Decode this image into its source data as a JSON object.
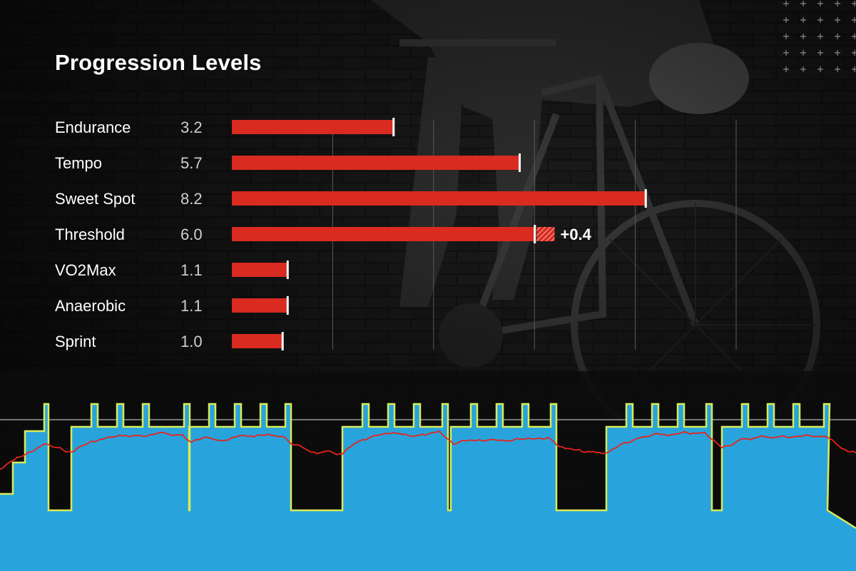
{
  "chart_data": [
    {
      "type": "bar",
      "orientation": "horizontal",
      "title": "Progression Levels",
      "categories": [
        "Endurance",
        "Tempo",
        "Sweet Spot",
        "Threshold",
        "VO2Max",
        "Anaerobic",
        "Sprint"
      ],
      "values": [
        3.2,
        5.7,
        8.2,
        6.0,
        1.1,
        1.1,
        1.0
      ],
      "value_labels": [
        "3.2",
        "5.7",
        "8.2",
        "6.0",
        "1.1",
        "1.1",
        "1.0"
      ],
      "increments": [
        {
          "category": "Threshold",
          "value": 0.4,
          "label": "+0.4"
        }
      ],
      "xlim": [
        0,
        10
      ],
      "grid": true,
      "bar_color": "#d92b20"
    },
    {
      "type": "area",
      "description_shown": "workout power profile with target steps and actual power trace",
      "colors": {
        "fill": "#29a3dc",
        "target_outline": "#d8ec58",
        "actual_power": "#e8231a",
        "reference_line": "#9a9a9a"
      }
    }
  ]
}
